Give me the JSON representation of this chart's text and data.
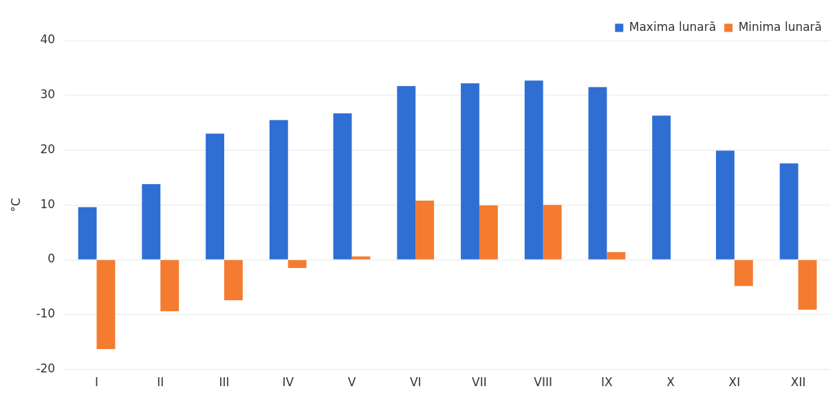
{
  "chart_data": {
    "type": "bar",
    "ylabel": "°C",
    "categories": [
      "I",
      "II",
      "III",
      "IV",
      "V",
      "VI",
      "VII",
      "VIII",
      "IX",
      "X",
      "XI",
      "XII"
    ],
    "series": [
      {
        "name": "Maxima lunară",
        "color": "#2f6fd4",
        "values": [
          9.6,
          13.8,
          23,
          25.5,
          26.7,
          31.7,
          32.2,
          32.7,
          31.5,
          26.3,
          19.9,
          17.6
        ]
      },
      {
        "name": "Minima lunară",
        "color": "#f47b30",
        "values": [
          -16.3,
          -9.4,
          -7.4,
          -1.5,
          0.6,
          10.8,
          9.9,
          10,
          1.4,
          null,
          -4.8,
          -9.1
        ]
      }
    ],
    "ylim": [
      -20,
      40
    ],
    "yticks": [
      -20,
      -10,
      0,
      10,
      20,
      30,
      40
    ],
    "grid": "y",
    "legend": "top right"
  }
}
